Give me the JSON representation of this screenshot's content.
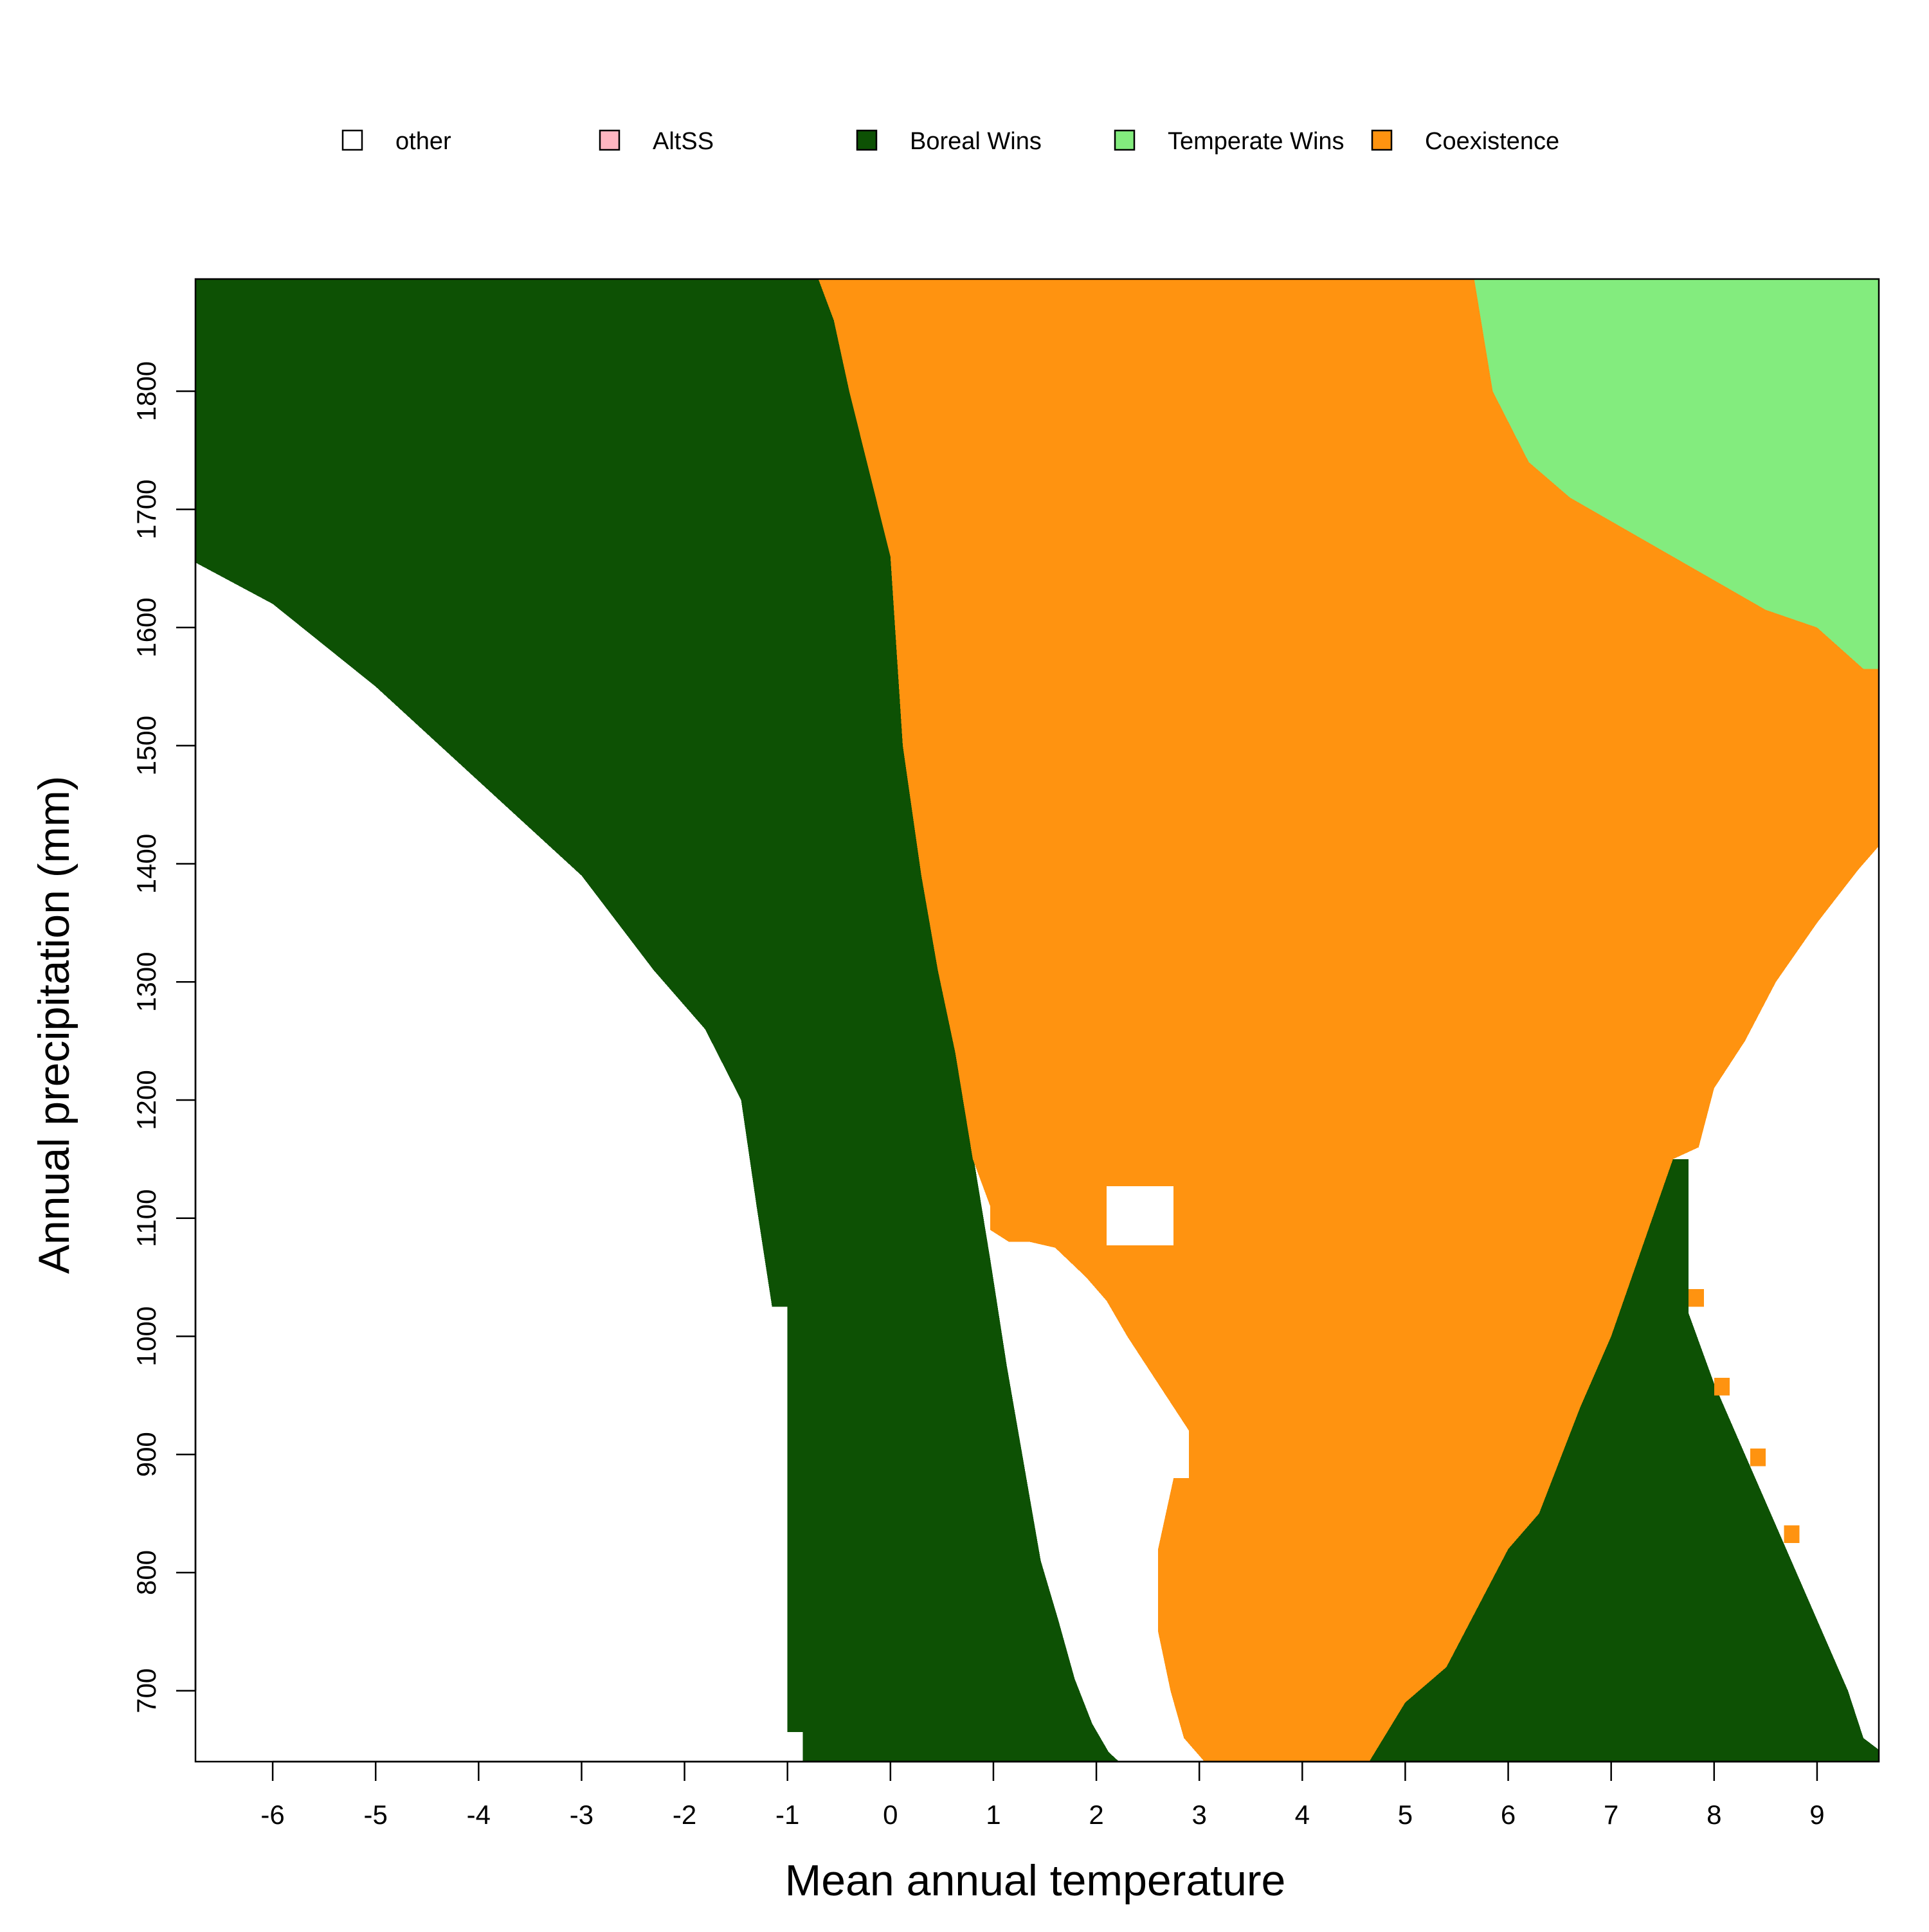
{
  "chart_data": {
    "type": "heatmap",
    "title": "",
    "xlabel": "Mean annual temperature",
    "ylabel": "Annual precipitation (mm)",
    "xlim": [
      -6.75,
      9.6
    ],
    "ylim": [
      640,
      1895
    ],
    "x_ticks": [
      -6,
      -5,
      -4,
      -3,
      -2,
      -1,
      0,
      1,
      2,
      3,
      4,
      5,
      6,
      7,
      8,
      9
    ],
    "y_ticks": [
      700,
      800,
      900,
      1000,
      1100,
      1200,
      1300,
      1400,
      1500,
      1600,
      1700,
      1800
    ],
    "grid": false,
    "legend_position": "top",
    "categories": [
      {
        "key": "other",
        "label": "other",
        "color": "#FFFFFF"
      },
      {
        "key": "altss",
        "label": "AltSS",
        "color": "#FFB6C1"
      },
      {
        "key": "boreal",
        "label": "Boreal Wins",
        "color": "#0D5104"
      },
      {
        "key": "temperate",
        "label": "Temperate Wins",
        "color": "#83EC7E"
      },
      {
        "key": "coexist",
        "label": "Coexistence",
        "color": "#FF9310"
      }
    ],
    "regions": [
      {
        "category": "boreal",
        "name": "boreal-west",
        "points": [
          [
            -6.75,
            1895
          ],
          [
            -0.7,
            1895
          ],
          [
            -0.55,
            1860
          ],
          [
            -0.4,
            1800
          ],
          [
            -0.2,
            1730
          ],
          [
            0.0,
            1660
          ],
          [
            0.12,
            1500
          ],
          [
            0.3,
            1390
          ],
          [
            0.46,
            1310
          ],
          [
            0.63,
            1245
          ],
          [
            0.8,
            1155
          ],
          [
            0.97,
            1065
          ],
          [
            1.13,
            975
          ],
          [
            1.3,
            890
          ],
          [
            1.46,
            810
          ],
          [
            1.63,
            760
          ],
          [
            1.79,
            710
          ],
          [
            1.96,
            672
          ],
          [
            2.12,
            648
          ],
          [
            2.22,
            640
          ],
          [
            -0.85,
            640
          ],
          [
            -0.85,
            665
          ],
          [
            -1.0,
            665
          ],
          [
            -1.0,
            1025
          ],
          [
            -1.15,
            1025
          ],
          [
            -1.3,
            1110
          ],
          [
            -1.45,
            1200
          ],
          [
            -1.8,
            1260
          ],
          [
            -2.3,
            1310
          ],
          [
            -3.0,
            1390
          ],
          [
            -4.0,
            1470
          ],
          [
            -5.0,
            1550
          ],
          [
            -6.0,
            1620
          ],
          [
            -6.75,
            1655
          ]
        ]
      },
      {
        "category": "coexist",
        "name": "coexistence-center",
        "points": [
          [
            -0.7,
            1895
          ],
          [
            5.67,
            1895
          ],
          [
            5.85,
            1800
          ],
          [
            6.2,
            1740
          ],
          [
            6.6,
            1710
          ],
          [
            7.0,
            1690
          ],
          [
            7.5,
            1665
          ],
          [
            8.0,
            1640
          ],
          [
            8.5,
            1615
          ],
          [
            9.0,
            1600
          ],
          [
            9.45,
            1565
          ],
          [
            9.6,
            1565
          ],
          [
            9.6,
            1415
          ],
          [
            9.4,
            1395
          ],
          [
            9.0,
            1350
          ],
          [
            8.6,
            1300
          ],
          [
            8.3,
            1250
          ],
          [
            8.0,
            1210
          ],
          [
            7.85,
            1160
          ],
          [
            7.6,
            1150
          ],
          [
            7.4,
            1100
          ],
          [
            7.0,
            1000
          ],
          [
            6.7,
            940
          ],
          [
            6.3,
            850
          ],
          [
            6.0,
            820
          ],
          [
            5.4,
            720
          ],
          [
            5.0,
            690
          ],
          [
            4.65,
            640
          ],
          [
            3.05,
            640
          ],
          [
            2.85,
            660
          ],
          [
            2.72,
            700
          ],
          [
            2.6,
            750
          ],
          [
            2.6,
            820
          ],
          [
            2.75,
            880
          ],
          [
            2.9,
            880
          ],
          [
            2.9,
            920
          ],
          [
            2.75,
            940
          ],
          [
            2.6,
            960
          ],
          [
            2.45,
            980
          ],
          [
            2.3,
            1000
          ],
          [
            2.1,
            1030
          ],
          [
            1.9,
            1050
          ],
          [
            1.6,
            1075
          ],
          [
            1.35,
            1080
          ],
          [
            1.15,
            1080
          ],
          [
            0.97,
            1090
          ],
          [
            0.97,
            1110
          ],
          [
            0.8,
            1150
          ],
          [
            0.63,
            1240
          ],
          [
            0.46,
            1310
          ],
          [
            0.3,
            1390
          ],
          [
            0.12,
            1500
          ],
          [
            0.0,
            1660
          ],
          [
            -0.2,
            1730
          ],
          [
            -0.4,
            1800
          ],
          [
            -0.55,
            1860
          ]
        ]
      },
      {
        "category": "temperate",
        "name": "temperate-corner",
        "points": [
          [
            5.67,
            1895
          ],
          [
            9.6,
            1895
          ],
          [
            9.6,
            1565
          ],
          [
            9.45,
            1565
          ],
          [
            9.0,
            1600
          ],
          [
            8.5,
            1615
          ],
          [
            8.0,
            1640
          ],
          [
            7.5,
            1665
          ],
          [
            7.0,
            1690
          ],
          [
            6.6,
            1710
          ],
          [
            6.2,
            1740
          ],
          [
            5.85,
            1800
          ]
        ]
      },
      {
        "category": "boreal",
        "name": "boreal-southeast",
        "points": [
          [
            4.65,
            640
          ],
          [
            5.0,
            690
          ],
          [
            5.4,
            720
          ],
          [
            6.0,
            820
          ],
          [
            6.3,
            850
          ],
          [
            6.7,
            940
          ],
          [
            7.0,
            1000
          ],
          [
            7.4,
            1100
          ],
          [
            7.6,
            1150
          ],
          [
            7.75,
            1150
          ],
          [
            7.75,
            1020
          ],
          [
            8.0,
            960
          ],
          [
            8.3,
            900
          ],
          [
            8.6,
            840
          ],
          [
            9.0,
            760
          ],
          [
            9.3,
            700
          ],
          [
            9.45,
            660
          ],
          [
            9.6,
            650
          ],
          [
            9.6,
            640
          ]
        ]
      },
      {
        "category": "coexist",
        "name": "coexistence-notch-1",
        "points": [
          [
            7.75,
            1040
          ],
          [
            7.9,
            1040
          ],
          [
            7.9,
            1025
          ],
          [
            7.75,
            1025
          ]
        ]
      },
      {
        "category": "coexist",
        "name": "coexistence-notch-2",
        "points": [
          [
            8.0,
            965
          ],
          [
            8.15,
            965
          ],
          [
            8.15,
            950
          ],
          [
            8.0,
            950
          ]
        ]
      },
      {
        "category": "coexist",
        "name": "coexistence-notch-3",
        "points": [
          [
            8.35,
            905
          ],
          [
            8.5,
            905
          ],
          [
            8.5,
            890
          ],
          [
            8.35,
            890
          ]
        ]
      },
      {
        "category": "coexist",
        "name": "coexistence-notch-4",
        "points": [
          [
            8.68,
            840
          ],
          [
            8.83,
            840
          ],
          [
            8.83,
            825
          ],
          [
            8.68,
            825
          ]
        ]
      },
      {
        "category": "other",
        "name": "other-patch",
        "points": [
          [
            2.1,
            1127
          ],
          [
            2.75,
            1127
          ],
          [
            2.75,
            1077
          ],
          [
            2.1,
            1077
          ]
        ]
      }
    ]
  }
}
